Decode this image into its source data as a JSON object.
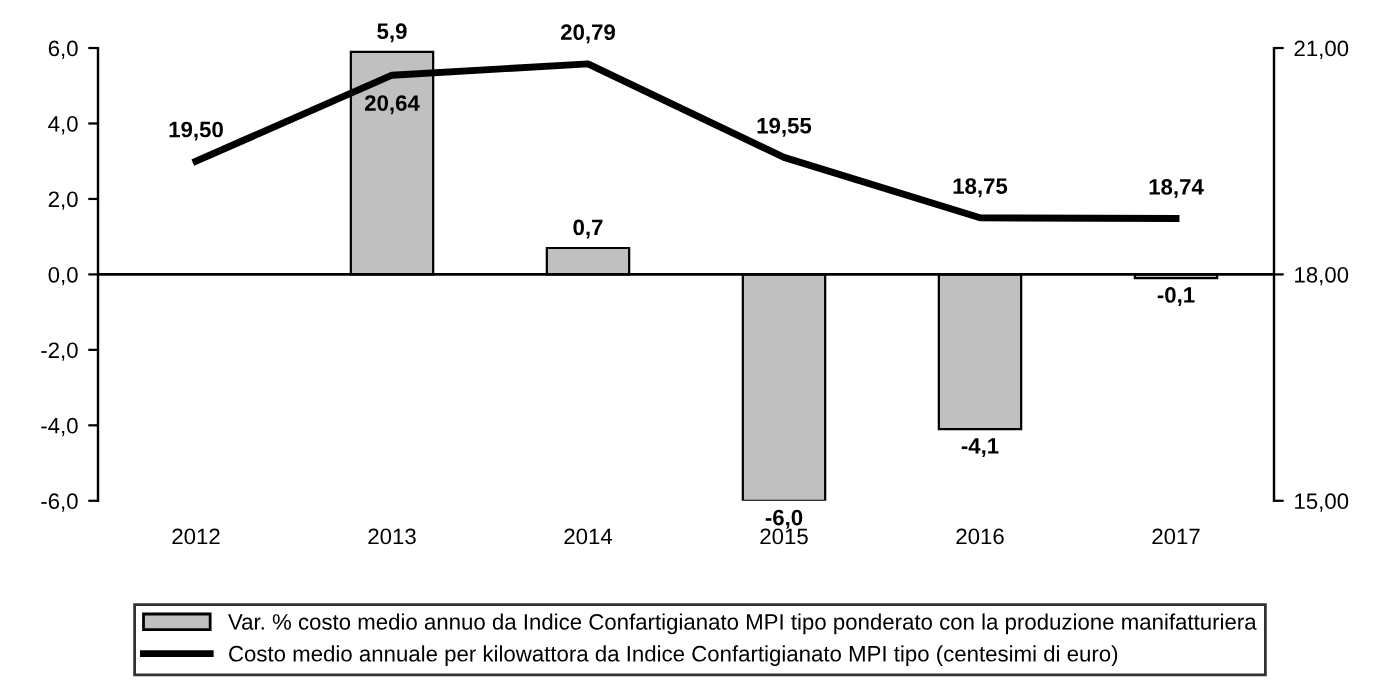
{
  "chart_data": {
    "type": "bar",
    "categories": [
      "2012",
      "2013",
      "2014",
      "2015",
      "2016",
      "2017"
    ],
    "series": [
      {
        "name": "Var. % costo medio annuo da Indice Confartigianato MPI tipo ponderato con la produzione manifatturiera",
        "color": "#c0c0c0",
        "values": [
          null,
          5.9,
          0.7,
          -6.0,
          -4.1,
          -0.1
        ],
        "value_labels": [
          null,
          "5,9",
          "0,7",
          "-6,0",
          "-4,1",
          "-0,1"
        ]
      },
      {
        "name": "Costo medio annuale per kilowattora da Indice Confartigianato MPI tipo (centesimi di euro)",
        "type": "line",
        "axis": "y2",
        "color": "#000000",
        "values": [
          19.5,
          20.64,
          20.79,
          19.55,
          18.75,
          18.74
        ],
        "value_labels": [
          "19,50",
          "20,64",
          "20,79",
          "19,55",
          "18,75",
          "18,74"
        ]
      }
    ],
    "ylim": [
      -6,
      6
    ],
    "yticks": [
      {
        "value": -6,
        "label": "-6,0"
      },
      {
        "value": -4,
        "label": "-4,0"
      },
      {
        "value": -2,
        "label": "-2,0"
      },
      {
        "value": 0,
        "label": "0,0"
      },
      {
        "value": 2,
        "label": "2,0"
      },
      {
        "value": 4,
        "label": "4,0"
      },
      {
        "value": 6,
        "label": "6,0"
      }
    ],
    "y2lim": [
      15,
      21
    ],
    "y2ticks": [
      {
        "value": 15,
        "label": "15,00"
      },
      {
        "value": 18,
        "label": "18,00"
      },
      {
        "value": 21,
        "label": "21,00"
      }
    ],
    "ref_lines": [
      {
        "axis": "y",
        "value": 0,
        "color": "#000000"
      }
    ],
    "grid": false,
    "legend": "bottom",
    "marker": "none",
    "line_style": "solid"
  }
}
